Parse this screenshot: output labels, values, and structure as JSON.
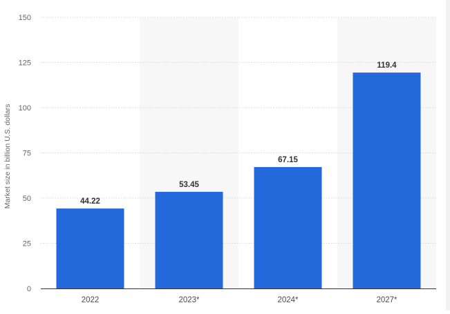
{
  "chart_data": {
    "type": "bar",
    "categories": [
      "2022",
      "2023*",
      "2024*",
      "2027*"
    ],
    "values": [
      44.22,
      53.45,
      67.15,
      119.4
    ],
    "value_labels": [
      "44.22",
      "53.45",
      "67.15",
      "119.4"
    ],
    "ylabel": "Market size in billion U.S. dollars",
    "xlabel": "",
    "ylim": [
      0,
      150
    ],
    "yticks": [
      0,
      25,
      50,
      75,
      100,
      125,
      150
    ],
    "grid": "horizontal-dashed",
    "alternating_band_color": "#f7f7f7",
    "bar_color": "#2369db"
  }
}
